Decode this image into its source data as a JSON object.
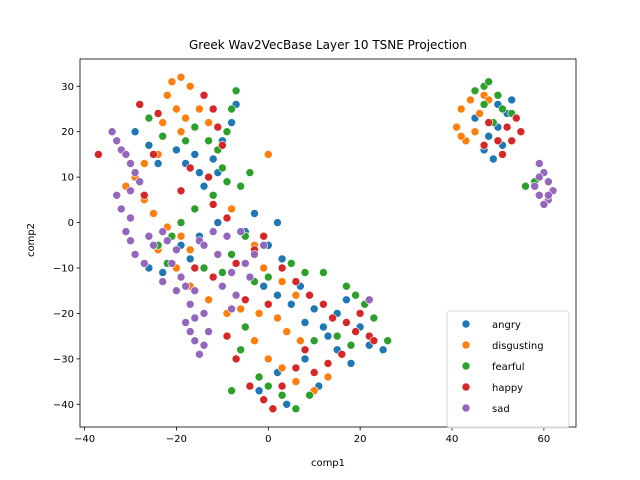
{
  "chart_data": {
    "type": "scatter",
    "title": "Greek Wav2VecBase Layer 10 TSNE Projection",
    "xlabel": "comp1",
    "ylabel": "comp2",
    "xlim": [
      -41,
      67
    ],
    "ylim": [
      -45,
      36
    ],
    "xticks": [
      -40,
      -20,
      0,
      20,
      40,
      60
    ],
    "yticks": [
      -40,
      -30,
      -20,
      -10,
      0,
      10,
      20,
      30
    ],
    "grid": false,
    "legend_position": "lower-right",
    "series": [
      {
        "name": "angry",
        "color": "#1f77b4",
        "points": [
          [
            -29,
            20
          ],
          [
            -26,
            17
          ],
          [
            -24,
            13
          ],
          [
            -20,
            16
          ],
          [
            -18,
            13
          ],
          [
            -16,
            15
          ],
          [
            -15,
            11
          ],
          [
            -14,
            8
          ],
          [
            -12,
            14
          ],
          [
            -11,
            11
          ],
          [
            -10,
            18
          ],
          [
            -7,
            26
          ],
          [
            -8,
            22
          ],
          [
            -19,
            -5
          ],
          [
            -17,
            -8
          ],
          [
            -15,
            -3
          ],
          [
            -11,
            0
          ],
          [
            -5,
            -2
          ],
          [
            -3,
            2
          ],
          [
            0,
            -5
          ],
          [
            2,
            0
          ],
          [
            3,
            -8
          ],
          [
            -1,
            -14
          ],
          [
            2,
            -16
          ],
          [
            5,
            -18
          ],
          [
            7,
            -14
          ],
          [
            8,
            -22
          ],
          [
            10,
            -19
          ],
          [
            12,
            -23
          ],
          [
            15,
            -20
          ],
          [
            17,
            -17
          ],
          [
            20,
            -23
          ],
          [
            22,
            -27
          ],
          [
            25,
            -28
          ],
          [
            -2,
            -37
          ],
          [
            2,
            -33
          ],
          [
            4,
            -40
          ],
          [
            8,
            -30
          ],
          [
            11,
            -36
          ],
          [
            13,
            -25
          ],
          [
            15,
            -28
          ],
          [
            18,
            -31
          ],
          [
            -23,
            -11
          ],
          [
            -26,
            -10
          ],
          [
            45,
            23
          ],
          [
            47,
            16
          ],
          [
            48,
            19
          ],
          [
            50,
            21
          ],
          [
            51,
            17
          ],
          [
            49,
            14
          ],
          [
            52,
            24
          ],
          [
            50,
            26
          ],
          [
            53,
            27
          ]
        ]
      },
      {
        "name": "disgusting",
        "color": "#ff7f0e",
        "points": [
          [
            -21,
            31
          ],
          [
            -19,
            32
          ],
          [
            -17,
            30
          ],
          [
            -22,
            28
          ],
          [
            -20,
            25
          ],
          [
            -18,
            23
          ],
          [
            -15,
            25
          ],
          [
            -13,
            22
          ],
          [
            -23,
            22
          ],
          [
            -19,
            20
          ],
          [
            -24,
            15
          ],
          [
            -27,
            13
          ],
          [
            -29,
            10
          ],
          [
            -31,
            8
          ],
          [
            -27,
            5
          ],
          [
            -25,
            2
          ],
          [
            -22,
            -1
          ],
          [
            -19,
            -3
          ],
          [
            -17,
            -6
          ],
          [
            -24,
            -6
          ],
          [
            -20,
            -10
          ],
          [
            -17,
            -14
          ],
          [
            -13,
            -17
          ],
          [
            -9,
            -20
          ],
          [
            -6,
            -19
          ],
          [
            -2,
            -20
          ],
          [
            2,
            -21
          ],
          [
            -1,
            -10
          ],
          [
            3,
            -13
          ],
          [
            6,
            -16
          ],
          [
            4,
            -24
          ],
          [
            7,
            -26
          ],
          [
            -3,
            -26
          ],
          [
            0,
            -30
          ],
          [
            3,
            -32
          ],
          [
            6,
            -35
          ],
          [
            10,
            -37
          ],
          [
            13,
            -34
          ],
          [
            0,
            15
          ],
          [
            -8,
            3
          ],
          [
            -3,
            -5
          ],
          [
            41,
            21
          ],
          [
            42,
            25
          ],
          [
            44,
            27
          ],
          [
            46,
            24
          ],
          [
            47,
            28
          ],
          [
            45,
            20
          ],
          [
            43,
            18
          ],
          [
            48,
            27
          ],
          [
            42,
            19
          ]
        ]
      },
      {
        "name": "fearful",
        "color": "#2ca02c",
        "points": [
          [
            -26,
            23
          ],
          [
            -23,
            19
          ],
          [
            -18,
            18
          ],
          [
            -16,
            21
          ],
          [
            -13,
            18
          ],
          [
            -11,
            16
          ],
          [
            -9,
            20
          ],
          [
            -8,
            25
          ],
          [
            -7,
            29
          ],
          [
            -10,
            12
          ],
          [
            -9,
            9
          ],
          [
            -12,
            6
          ],
          [
            -16,
            3
          ],
          [
            -19,
            0
          ],
          [
            -21,
            -3
          ],
          [
            -24,
            -5
          ],
          [
            -22,
            -9
          ],
          [
            -14,
            -10
          ],
          [
            -10,
            -11
          ],
          [
            -8,
            -7
          ],
          [
            -5,
            -3
          ],
          [
            -3,
            -13
          ],
          [
            0,
            -12
          ],
          [
            5,
            -9
          ],
          [
            8,
            -11
          ],
          [
            12,
            -11
          ],
          [
            17,
            -14
          ],
          [
            19,
            -16
          ],
          [
            21,
            -18
          ],
          [
            23,
            -21
          ],
          [
            26,
            -26
          ],
          [
            18,
            -27
          ],
          [
            15,
            -25
          ],
          [
            10,
            -26
          ],
          [
            -6,
            -28
          ],
          [
            -5,
            -23
          ],
          [
            -2,
            -34
          ],
          [
            0,
            -36
          ],
          [
            3,
            -38
          ],
          [
            6,
            -41
          ],
          [
            9,
            -38
          ],
          [
            -8,
            -37
          ],
          [
            45,
            29
          ],
          [
            47,
            30
          ],
          [
            48,
            31
          ],
          [
            50,
            28
          ],
          [
            51,
            25
          ],
          [
            49,
            22
          ],
          [
            53,
            24
          ],
          [
            47,
            26
          ],
          [
            56,
            8
          ],
          [
            58,
            9
          ],
          [
            -6,
            8
          ],
          [
            -4,
            11
          ]
        ]
      },
      {
        "name": "happy",
        "color": "#d62728",
        "points": [
          [
            -37,
            15
          ],
          [
            -33,
            6
          ],
          [
            -28,
            26
          ],
          [
            -25,
            15
          ],
          [
            -19,
            7
          ],
          [
            -17,
            12
          ],
          [
            -13,
            10
          ],
          [
            -12,
            4
          ],
          [
            -9,
            1
          ],
          [
            -14,
            28
          ],
          [
            -12,
            25
          ],
          [
            -11,
            21
          ],
          [
            -10,
            17
          ],
          [
            -16,
            -10
          ],
          [
            -12,
            -12
          ],
          [
            -7,
            -9
          ],
          [
            -3,
            -6
          ],
          [
            -1,
            -3
          ],
          [
            3,
            -10
          ],
          [
            6,
            -13
          ],
          [
            9,
            -16
          ],
          [
            12,
            -18
          ],
          [
            14,
            -21
          ],
          [
            17,
            -22
          ],
          [
            19,
            -24
          ],
          [
            22,
            -25
          ],
          [
            16,
            -29
          ],
          [
            13,
            -31
          ],
          [
            8,
            -28
          ],
          [
            6,
            -32
          ],
          [
            3,
            -36
          ],
          [
            1,
            -41
          ],
          [
            -1,
            -39
          ],
          [
            -4,
            -36
          ],
          [
            -7,
            -30
          ],
          [
            -9,
            -25
          ],
          [
            -5,
            -17
          ],
          [
            0,
            -18
          ],
          [
            10,
            -33
          ],
          [
            20,
            -20
          ],
          [
            23,
            -26
          ],
          [
            47,
            17
          ],
          [
            48,
            22
          ],
          [
            50,
            18
          ],
          [
            52,
            21
          ],
          [
            53,
            18
          ],
          [
            51,
            15
          ],
          [
            54,
            23
          ],
          [
            55,
            20
          ],
          [
            -24,
            24
          ],
          [
            -27,
            6
          ]
        ]
      },
      {
        "name": "sad",
        "color": "#9467bd",
        "points": [
          [
            -34,
            20
          ],
          [
            -33,
            18
          ],
          [
            -32,
            16
          ],
          [
            -31,
            15
          ],
          [
            -30,
            13
          ],
          [
            -29,
            11
          ],
          [
            -28,
            9
          ],
          [
            -30,
            7
          ],
          [
            -33,
            6
          ],
          [
            -32,
            3
          ],
          [
            -30,
            1
          ],
          [
            -31,
            -2
          ],
          [
            -30,
            -4
          ],
          [
            -29,
            -7
          ],
          [
            -26,
            -3
          ],
          [
            -25,
            -5
          ],
          [
            -23,
            -2
          ],
          [
            -22,
            -4
          ],
          [
            -20,
            -6
          ],
          [
            -21,
            -9
          ],
          [
            -19,
            -12
          ],
          [
            -18,
            -14
          ],
          [
            -20,
            -15
          ],
          [
            -17,
            -18
          ],
          [
            -16,
            -21
          ],
          [
            -18,
            -22
          ],
          [
            -17,
            -24
          ],
          [
            -16,
            -26
          ],
          [
            -15,
            -29
          ],
          [
            -14,
            -27
          ],
          [
            -13,
            -24
          ],
          [
            -14,
            -20
          ],
          [
            -10,
            -14
          ],
          [
            -8,
            -11
          ],
          [
            -5,
            -9
          ],
          [
            -3,
            -7
          ],
          [
            -1,
            -5
          ],
          [
            -6,
            -2
          ],
          [
            -9,
            -3
          ],
          [
            -12,
            -2
          ],
          [
            -15,
            -4
          ],
          [
            -11,
            -7
          ],
          [
            -27,
            -9
          ],
          [
            -23,
            -13
          ],
          [
            -14,
            -5
          ],
          [
            -7,
            -16
          ],
          [
            -8,
            -19
          ],
          [
            -16,
            -15
          ],
          [
            22,
            -17
          ],
          [
            -4,
            -12
          ],
          [
            59,
            13
          ],
          [
            60,
            11
          ],
          [
            61,
            9
          ],
          [
            62,
            7
          ],
          [
            61,
            5
          ],
          [
            60,
            4
          ],
          [
            59,
            6
          ],
          [
            58,
            8
          ],
          [
            59,
            10
          ],
          [
            61,
            6
          ]
        ]
      }
    ]
  }
}
